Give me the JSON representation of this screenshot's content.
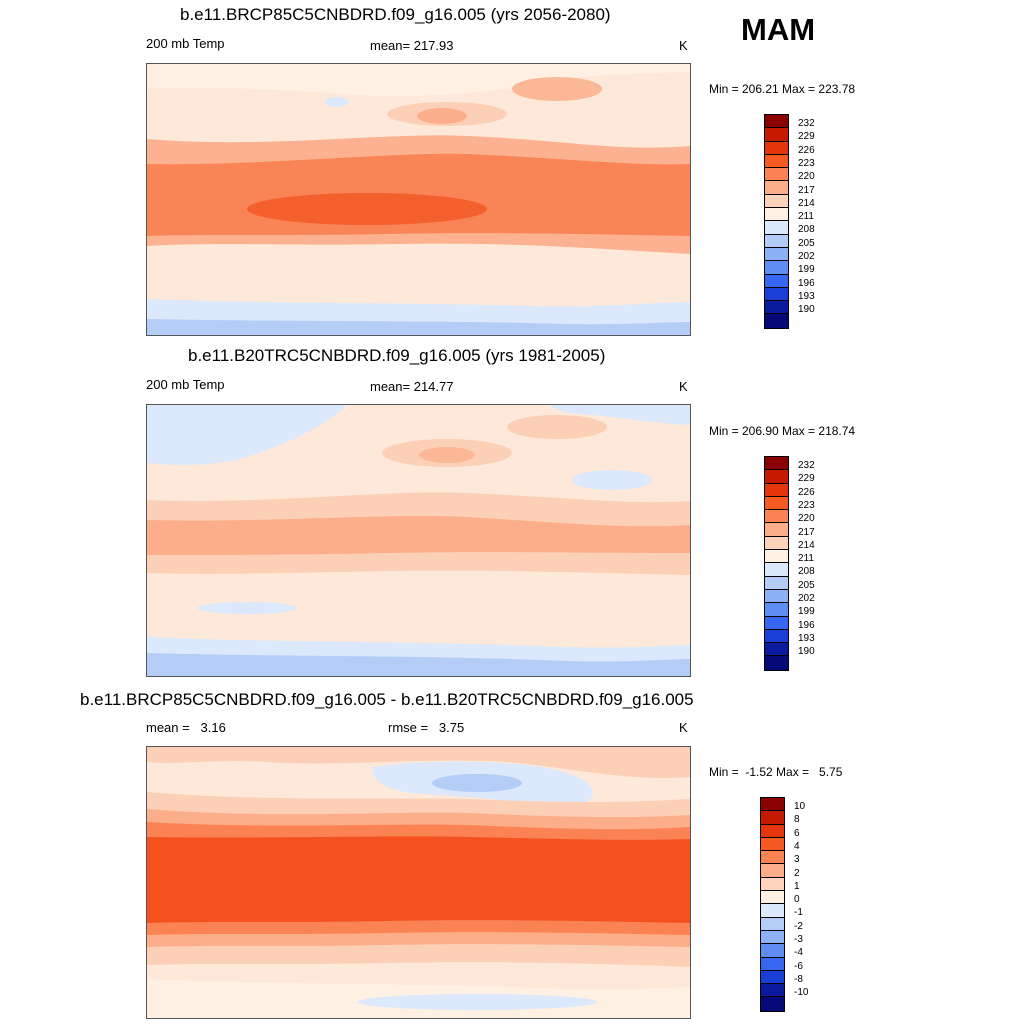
{
  "season": "MAM",
  "panels": [
    {
      "title": "b.e11.BRCP85C5CNBDRD.f09_g16.005 (yrs 2056-2080)",
      "left_label": "200 mb Temp",
      "center_label": "mean= 217.93",
      "right_label": "K",
      "minmax": "Min = 206.21 Max = 223.78",
      "colorbar_labels": [
        "232",
        "229",
        "226",
        "223",
        "220",
        "217",
        "214",
        "211",
        "208",
        "205",
        "202",
        "199",
        "196",
        "193",
        "190"
      ],
      "colorbar_colors": [
        "#8b0000",
        "#c61a00",
        "#e4360c",
        "#f55a23",
        "#fb8353",
        "#fcae8b",
        "#fdd2bb",
        "#fff0e4",
        "#dce8fb",
        "#b3cdf7",
        "#8cb1f5",
        "#5f8ef3",
        "#3766f0",
        "#1a3fd6",
        "#0b1ba0",
        "#050a78"
      ]
    },
    {
      "title": "b.e11.B20TRC5CNBDRD.f09_g16.005 (yrs 1981-2005)",
      "left_label": "200 mb Temp",
      "center_label": "mean= 214.77",
      "right_label": "K",
      "minmax": "Min = 206.90 Max = 218.74",
      "colorbar_labels": [
        "232",
        "229",
        "226",
        "223",
        "220",
        "217",
        "214",
        "211",
        "208",
        "205",
        "202",
        "199",
        "196",
        "193",
        "190"
      ],
      "colorbar_colors": [
        "#8b0000",
        "#c61a00",
        "#e4360c",
        "#f55a23",
        "#fb8353",
        "#fcae8b",
        "#fdd2bb",
        "#fff0e4",
        "#dce8fb",
        "#b3cdf7",
        "#8cb1f5",
        "#5f8ef3",
        "#3766f0",
        "#1a3fd6",
        "#0b1ba0",
        "#050a78"
      ]
    },
    {
      "title": "b.e11.BRCP85C5CNBDRD.f09_g16.005 - b.e11.B20TRC5CNBDRD.f09_g16.005",
      "left_label": "mean =   3.16",
      "center_label": "rmse =   3.75",
      "right_label": "K",
      "minmax": "Min =  -1.52 Max =   5.75",
      "colorbar_labels": [
        "10",
        "8",
        "6",
        "4",
        "3",
        "2",
        "1",
        "0",
        "-1",
        "-2",
        "-3",
        "-4",
        "-6",
        "-8",
        "-10"
      ],
      "colorbar_colors": [
        "#8b0000",
        "#c61a00",
        "#e4360c",
        "#f55a23",
        "#fb8353",
        "#fcae8b",
        "#fdd2bb",
        "#fff0e4",
        "#dce8fb",
        "#b3cdf7",
        "#8cb1f5",
        "#5f8ef3",
        "#3766f0",
        "#1a3fd6",
        "#0b1ba0",
        "#050a78"
      ]
    }
  ]
}
